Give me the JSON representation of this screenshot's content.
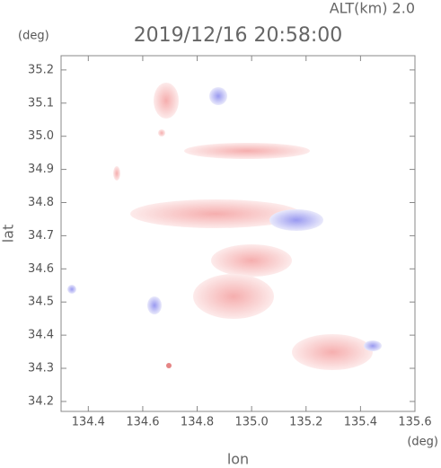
{
  "chart_data": {
    "type": "map",
    "title": "2019/12/16 20:58:00",
    "subtitle": "ALT(km) 2.0",
    "y_unit": "(deg)",
    "x_unit": "(deg)",
    "xlabel": "lon",
    "ylabel": "lat",
    "xlim": [
      134.3,
      135.6
    ],
    "ylim": [
      34.17,
      35.243
    ],
    "xticks": [
      134.4,
      134.6,
      134.8,
      {
        "value": 135.0,
        "label": "135.0"
      },
      135.2,
      135.4,
      135.6
    ],
    "yticks": [
      34.2,
      34.3,
      34.4,
      34.5,
      34.6,
      34.7,
      34.8,
      34.9,
      {
        "value": 35.0,
        "label": "35.0"
      },
      35.1,
      35.2
    ]
  }
}
